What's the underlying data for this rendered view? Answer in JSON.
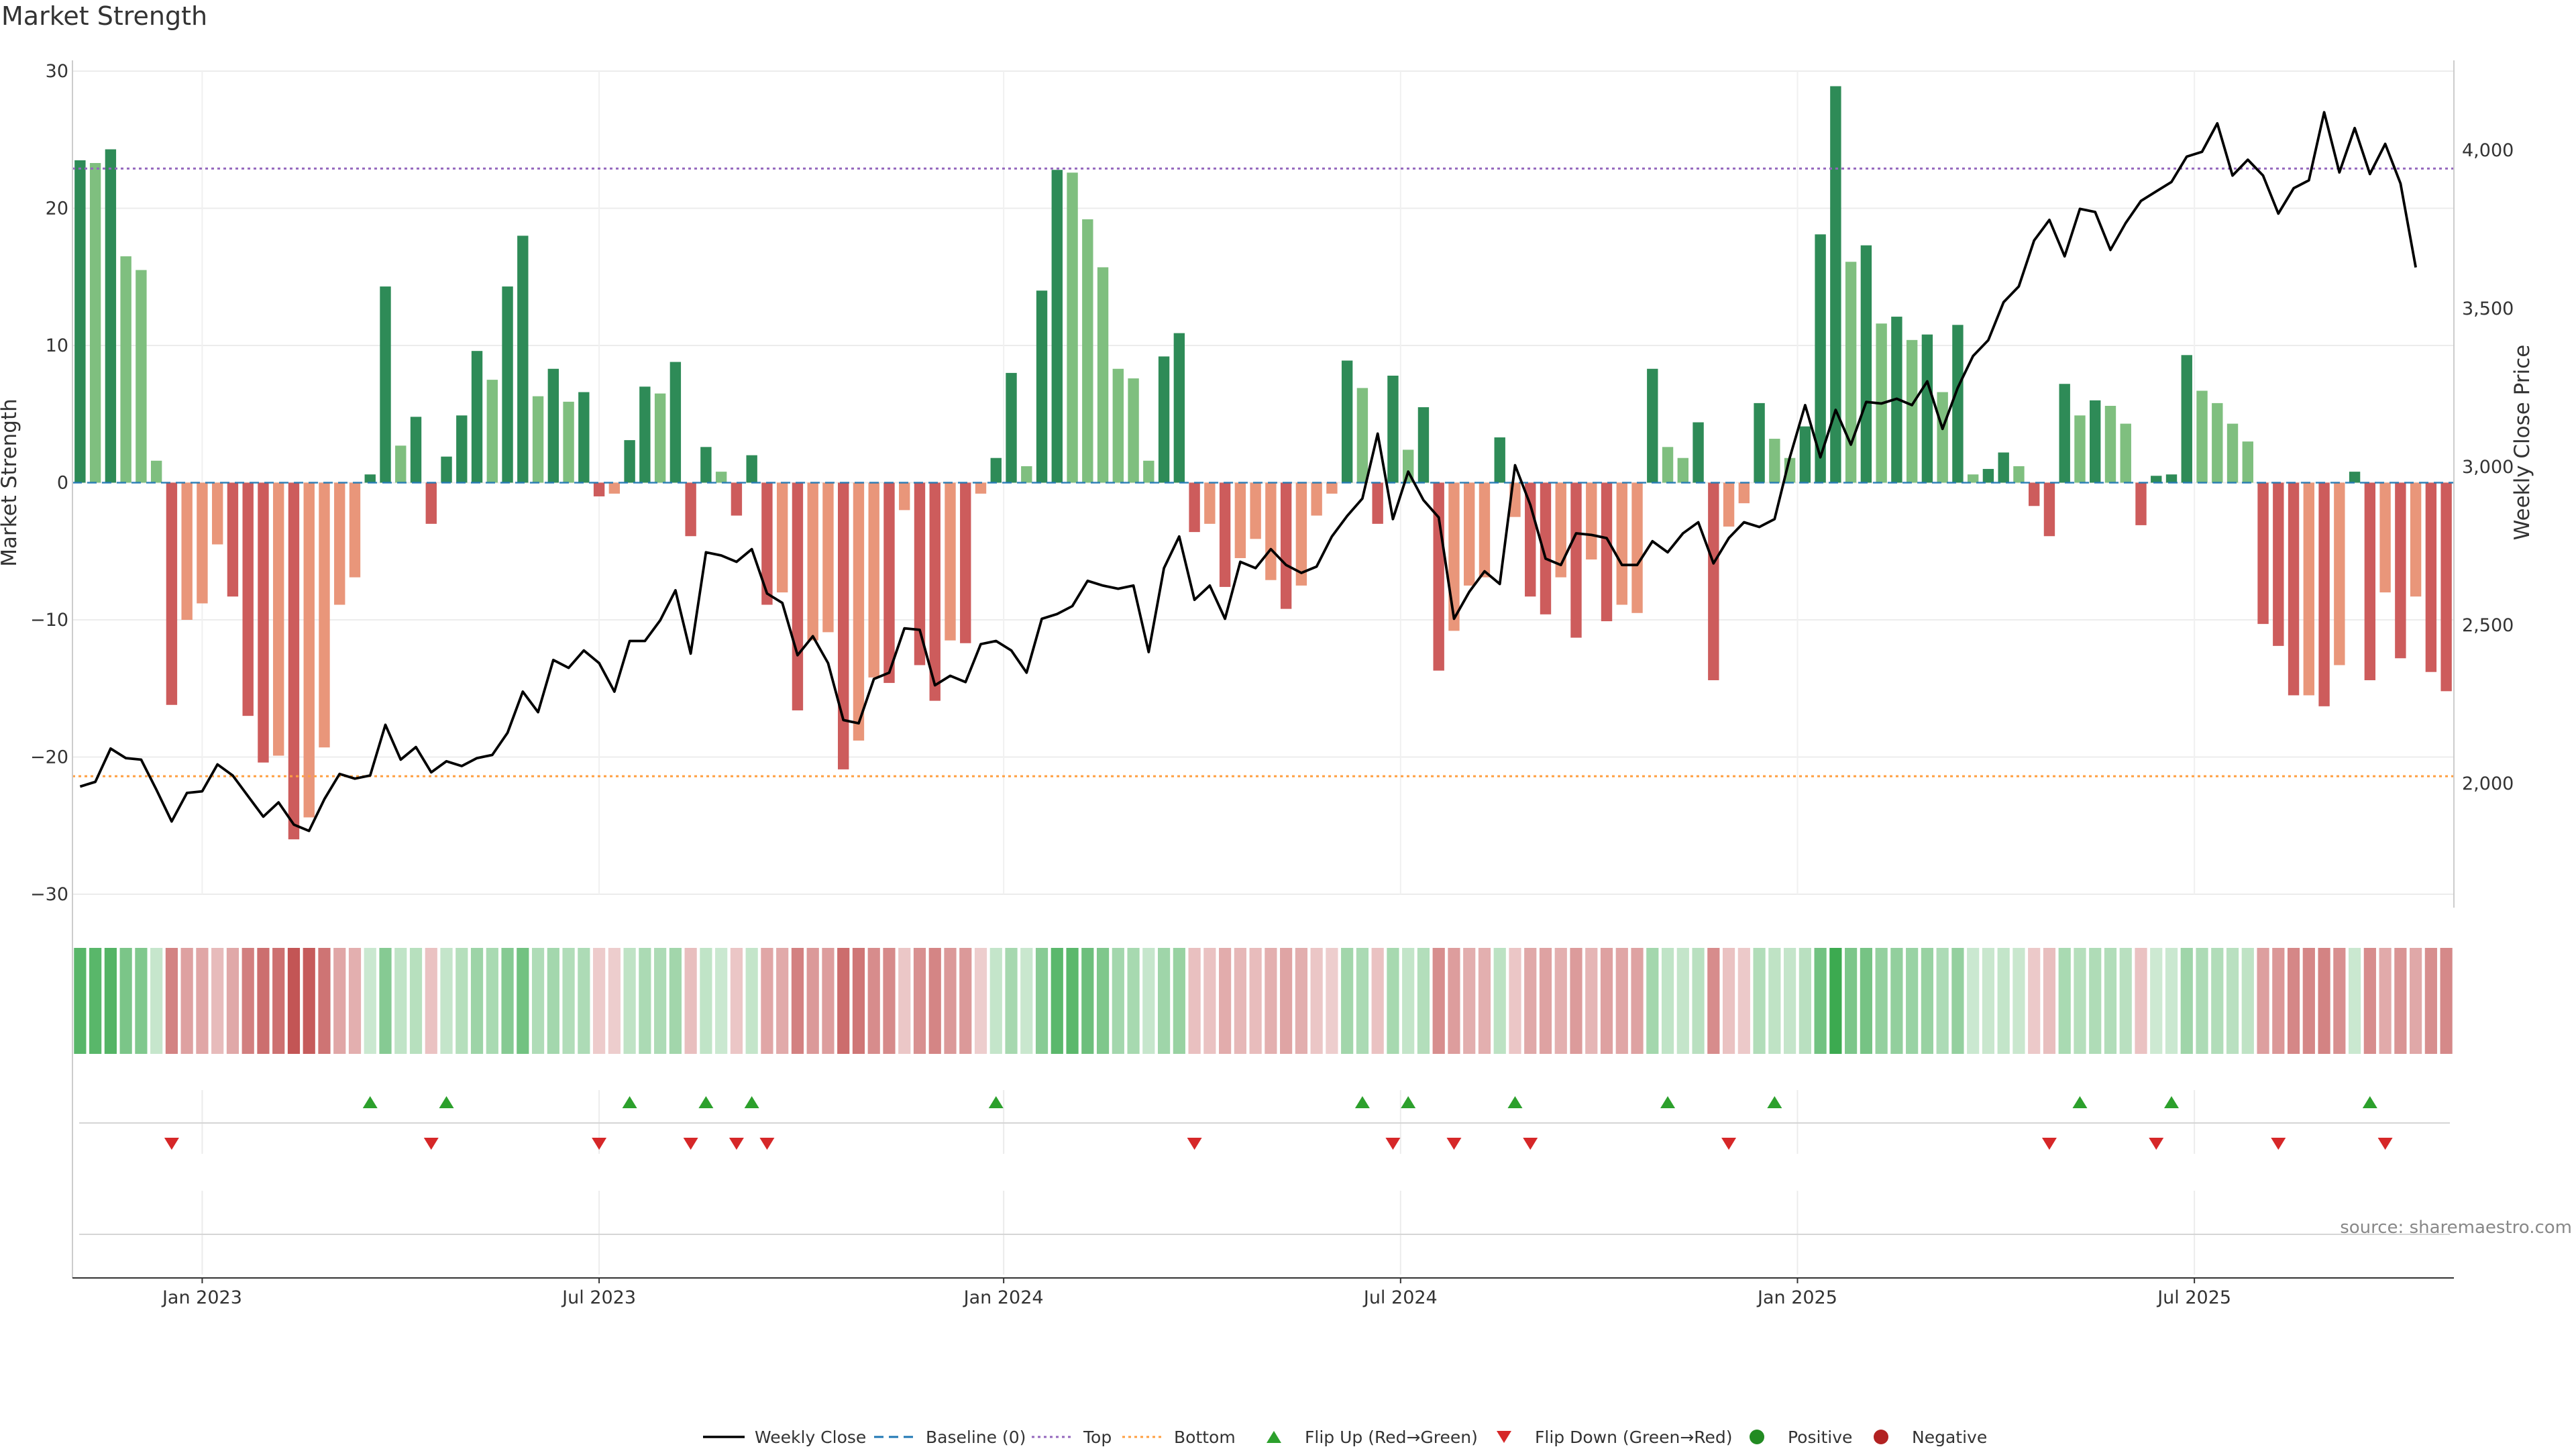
{
  "chart_data": {
    "type": "bar",
    "title": "Market Strength",
    "source": "source: sharemaestro.com",
    "y_left": {
      "label": "Market Strength",
      "range": [
        -30,
        30
      ],
      "ticks": [
        30,
        20,
        10,
        0,
        -10,
        -20,
        -30
      ],
      "tick_labels": [
        "30",
        "20",
        "10",
        "0",
        "−10",
        "−20",
        "−30"
      ]
    },
    "y_right": {
      "label": "Weekly Close Price",
      "range": [
        1650,
        4250
      ],
      "ticks": [
        4000,
        3500,
        3000,
        2500,
        2000
      ],
      "tick_labels": [
        "4,000",
        "3,500",
        "3,000",
        "2,500",
        "2,000"
      ]
    },
    "x_axis": {
      "ticks": [
        "Jan 2023",
        "Jul 2023",
        "Jan 2024",
        "Jul 2024",
        "Jan 2025",
        "Jul 2025"
      ],
      "tick_weeks": [
        8,
        34,
        60.5,
        86.5,
        112.5,
        138.5
      ]
    },
    "reference_lines": {
      "top": 22.9,
      "bottom": -21.4,
      "baseline": 0
    },
    "bar_colors": {
      "strong_positive": "#2e8b57",
      "weak_positive": "#7fbf7f",
      "strong_negative": "#cd5c5c",
      "weak_negative": "#e9967a"
    },
    "price_color": "#000000",
    "strength": [
      23.5,
      23.3,
      24.3,
      16.5,
      15.5,
      1.6,
      -16.2,
      -10.0,
      -8.8,
      -4.5,
      -8.3,
      -17.0,
      -20.4,
      -19.9,
      -26.0,
      -24.4,
      -19.3,
      -8.9,
      -6.9,
      0.6,
      14.3,
      2.7,
      4.8,
      -3.0,
      1.9,
      4.9,
      9.6,
      7.5,
      14.3,
      18.0,
      6.3,
      8.3,
      5.9,
      6.6,
      -1.0,
      -0.8,
      3.1,
      7.0,
      6.5,
      8.8,
      -3.9,
      2.6,
      0.8,
      -2.4,
      2.0,
      -8.9,
      -8.0,
      -16.6,
      -11.5,
      -10.9,
      -20.9,
      -18.8,
      -14.2,
      -14.6,
      -2.0,
      -13.3,
      -15.9,
      -11.5,
      -11.7,
      -0.8,
      1.8,
      8.0,
      1.2,
      14.0,
      22.8,
      22.6,
      19.2,
      15.7,
      8.3,
      7.6,
      1.6,
      9.2,
      10.9,
      -3.6,
      -3.0,
      -7.6,
      -5.5,
      -4.1,
      -7.1,
      -9.2,
      -7.5,
      -2.4,
      -0.8,
      8.9,
      6.9,
      -3.0,
      7.8,
      2.4,
      5.5,
      -13.7,
      -10.8,
      -7.5,
      -6.9,
      3.3,
      -2.5,
      -8.3,
      -9.6,
      -6.9,
      -11.3,
      -5.6,
      -10.1,
      -8.9,
      -9.5,
      8.3,
      2.6,
      1.8,
      4.4,
      -14.4,
      -3.2,
      -1.5,
      5.8,
      3.2,
      1.8,
      4.1,
      18.1,
      28.9,
      16.1,
      17.3,
      11.6,
      12.1,
      10.4,
      10.8,
      6.6,
      11.5,
      0.6,
      1.0,
      2.2,
      1.2,
      -1.7,
      -3.9,
      7.2,
      4.9,
      6.0,
      5.6,
      4.3,
      -3.1,
      0.5,
      0.6,
      9.3,
      6.7,
      5.8,
      4.3,
      3.0,
      -10.3,
      -11.9,
      -15.5,
      -15.5,
      -16.3,
      -13.3,
      0.8,
      -14.4,
      -8.0,
      -12.8,
      -8.3,
      -13.8,
      -15.2
    ],
    "strong_flags": [
      1,
      0,
      1,
      0,
      0,
      0,
      1,
      0,
      0,
      0,
      1,
      1,
      1,
      0,
      1,
      0,
      0,
      0,
      0,
      1,
      1,
      0,
      1,
      1,
      1,
      1,
      1,
      0,
      1,
      1,
      0,
      1,
      0,
      1,
      1,
      0,
      1,
      1,
      0,
      1,
      1,
      1,
      0,
      1,
      1,
      1,
      0,
      1,
      0,
      0,
      1,
      0,
      0,
      1,
      0,
      1,
      1,
      0,
      1,
      0,
      1,
      1,
      0,
      1,
      1,
      0,
      0,
      0,
      0,
      0,
      0,
      1,
      1,
      1,
      0,
      1,
      0,
      0,
      0,
      1,
      0,
      0,
      0,
      1,
      0,
      1,
      1,
      0,
      1,
      1,
      0,
      0,
      0,
      1,
      0,
      1,
      1,
      0,
      1,
      0,
      1,
      0,
      0,
      1,
      0,
      0,
      1,
      1,
      0,
      0,
      1,
      0,
      0,
      1,
      1,
      1,
      0,
      1,
      0,
      1,
      0,
      1,
      0,
      1,
      0,
      1,
      1,
      0,
      1,
      1,
      1,
      0,
      1,
      0,
      0,
      1,
      1,
      1,
      1,
      0,
      0,
      0,
      0,
      1,
      1,
      1,
      0,
      1,
      0,
      1,
      1,
      0,
      1,
      0,
      1,
      1
    ],
    "weekly_close": [
      1990,
      2005,
      2110,
      2080,
      2075,
      1980,
      1880,
      1970,
      1975,
      2060,
      2025,
      1960,
      1895,
      1940,
      1870,
      1850,
      1950,
      2030,
      2015,
      2025,
      2185,
      2075,
      2115,
      2035,
      2070,
      2055,
      2080,
      2090,
      2160,
      2290,
      2225,
      2390,
      2365,
      2420,
      2380,
      2290,
      2450,
      2450,
      2515,
      2610,
      2410,
      2730,
      2720,
      2700,
      2740,
      2600,
      2570,
      2405,
      2465,
      2380,
      2200,
      2190,
      2330,
      2350,
      2490,
      2485,
      2310,
      2340,
      2320,
      2440,
      2450,
      2420,
      2350,
      2520,
      2535,
      2560,
      2640,
      2625,
      2615,
      2625,
      2415,
      2680,
      2780,
      2580,
      2625,
      2520,
      2700,
      2680,
      2740,
      2690,
      2665,
      2685,
      2780,
      2845,
      2900,
      3105,
      2835,
      2985,
      2895,
      2840,
      2520,
      2605,
      2670,
      2630,
      3005,
      2880,
      2710,
      2690,
      2790,
      2785,
      2775,
      2690,
      2690,
      2765,
      2730,
      2790,
      2825,
      2695,
      2775,
      2825,
      2810,
      2835,
      3030,
      3195,
      3030,
      3180,
      3070,
      3205,
      3200,
      3215,
      3195,
      3270,
      3120,
      3250,
      3350,
      3400,
      3520,
      3570,
      3715,
      3780,
      3665,
      3815,
      3805,
      3685,
      3770,
      3840,
      3870,
      3900,
      3980,
      3995,
      4085,
      3920,
      3970,
      3920,
      3800,
      3880,
      3905,
      4120,
      3930,
      4070,
      3925,
      4020,
      3895,
      3630
    ],
    "flip_up_weeks": [
      19,
      24,
      36,
      41,
      44,
      60,
      84,
      87,
      94,
      104,
      111,
      131,
      137,
      150
    ],
    "flip_down_weeks": [
      6,
      23,
      34,
      40,
      43,
      45,
      73,
      86,
      90,
      95,
      108,
      129,
      136,
      144,
      151
    ],
    "legend": {
      "weekly_close": "Weekly Close",
      "baseline": "Baseline (0)",
      "top": "Top",
      "bottom": "Bottom",
      "flip_up": "Flip Up (Red→Green)",
      "flip_down": "Flip Down (Green→Red)",
      "positive": "Positive",
      "negative": "Negative"
    },
    "legend_placement": "bottom-center",
    "legend_colors": {
      "top_line": "#9467bd",
      "bottom_line": "#ff9f40",
      "baseline": "#1f77b4",
      "flip_up": "#2ca02c",
      "flip_down": "#d62728",
      "positive": "#228b22",
      "negative": "#b22222"
    },
    "grid": true
  }
}
